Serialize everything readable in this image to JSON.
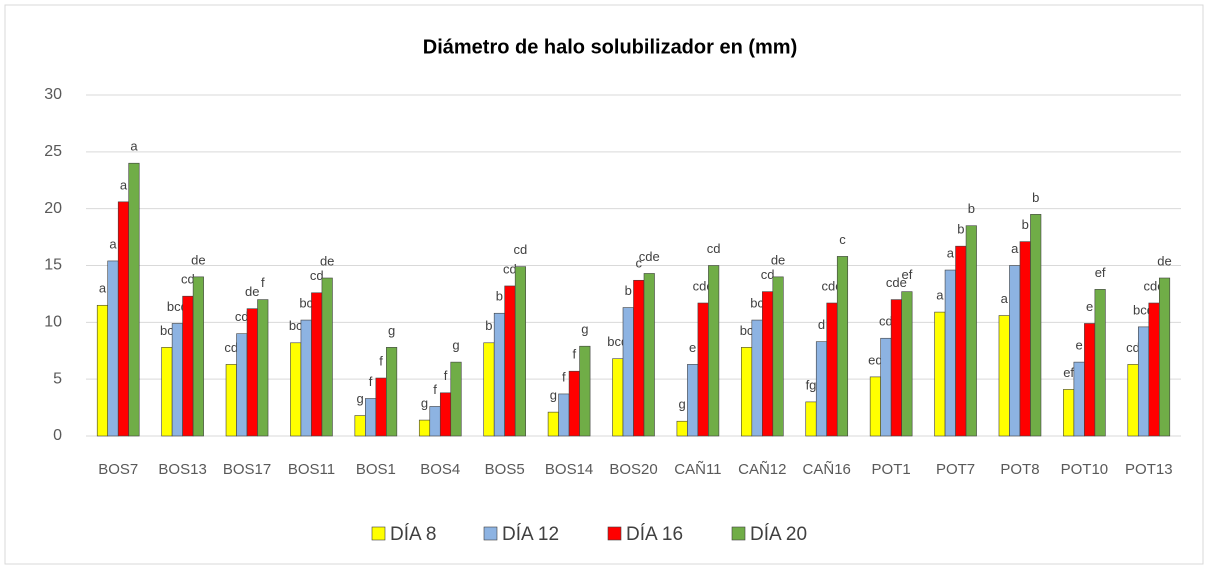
{
  "chart_data": {
    "type": "bar",
    "title": "Diámetro de halo solubilizador en (mm)",
    "categories": [
      "BOS7",
      "BOS13",
      "BOS17",
      "BOS11",
      "BOS1",
      "BOS4",
      "BOS5",
      "BOS14",
      "BOS20",
      "CAÑ11",
      "CAÑ12",
      "CAÑ16",
      "POT1",
      "POT7",
      "POT8",
      "POT10",
      "POT13"
    ],
    "series": [
      {
        "name": "DÍA 8",
        "color": "#ffff00",
        "values": [
          11.5,
          7.8,
          6.3,
          8.2,
          1.8,
          1.4,
          8.2,
          2.1,
          6.8,
          1.3,
          7.8,
          3.0,
          5.2,
          10.9,
          10.6,
          4.1,
          6.3
        ],
        "labels": [
          "a",
          "bc",
          "cd",
          "bc",
          "g",
          "g",
          "b",
          "g",
          "bcd",
          "g",
          "bc",
          "fg",
          "ed",
          "a",
          "a",
          "ef",
          "cd"
        ]
      },
      {
        "name": "DÍA 12",
        "color": "#8db3e2",
        "values": [
          15.4,
          9.9,
          9.0,
          10.2,
          3.3,
          2.6,
          10.8,
          3.7,
          11.3,
          6.3,
          10.2,
          8.3,
          8.6,
          14.6,
          15.0,
          6.5,
          9.6
        ],
        "labels": [
          "a",
          "bcd",
          "cd",
          "bc",
          "f",
          "f",
          "b",
          "f",
          "b",
          "e",
          "bc",
          "d",
          "cd",
          "a",
          "a",
          "e",
          "bcd"
        ]
      },
      {
        "name": "DÍA 16",
        "color": "#ff0000",
        "values": [
          20.6,
          12.3,
          11.2,
          12.6,
          5.1,
          3.8,
          13.2,
          5.7,
          13.7,
          11.7,
          12.7,
          11.7,
          12.0,
          16.7,
          17.1,
          9.9,
          11.7
        ],
        "labels": [
          "a",
          "cd",
          "de",
          "cd",
          "f",
          "f",
          "cd",
          "f",
          "c",
          "cde",
          "cd",
          "cde",
          "cde",
          "b",
          "b",
          "e",
          "cde"
        ]
      },
      {
        "name": "DÍA 20",
        "color": "#70ad47",
        "values": [
          24.0,
          14.0,
          12.0,
          13.9,
          7.8,
          6.5,
          14.9,
          7.9,
          14.3,
          15.0,
          14.0,
          15.8,
          12.7,
          18.5,
          19.5,
          12.9,
          13.9
        ],
        "labels": [
          "a",
          "de",
          "f",
          "de",
          "g",
          "g",
          "cd",
          "g",
          "cde",
          "cd",
          "de",
          "c",
          "ef",
          "b",
          "b",
          "ef",
          "de"
        ]
      }
    ],
    "ylim": [
      0,
      30
    ],
    "yticks": [
      0,
      5,
      10,
      15,
      20,
      25,
      30
    ],
    "grid": true,
    "legend": "bottom"
  }
}
